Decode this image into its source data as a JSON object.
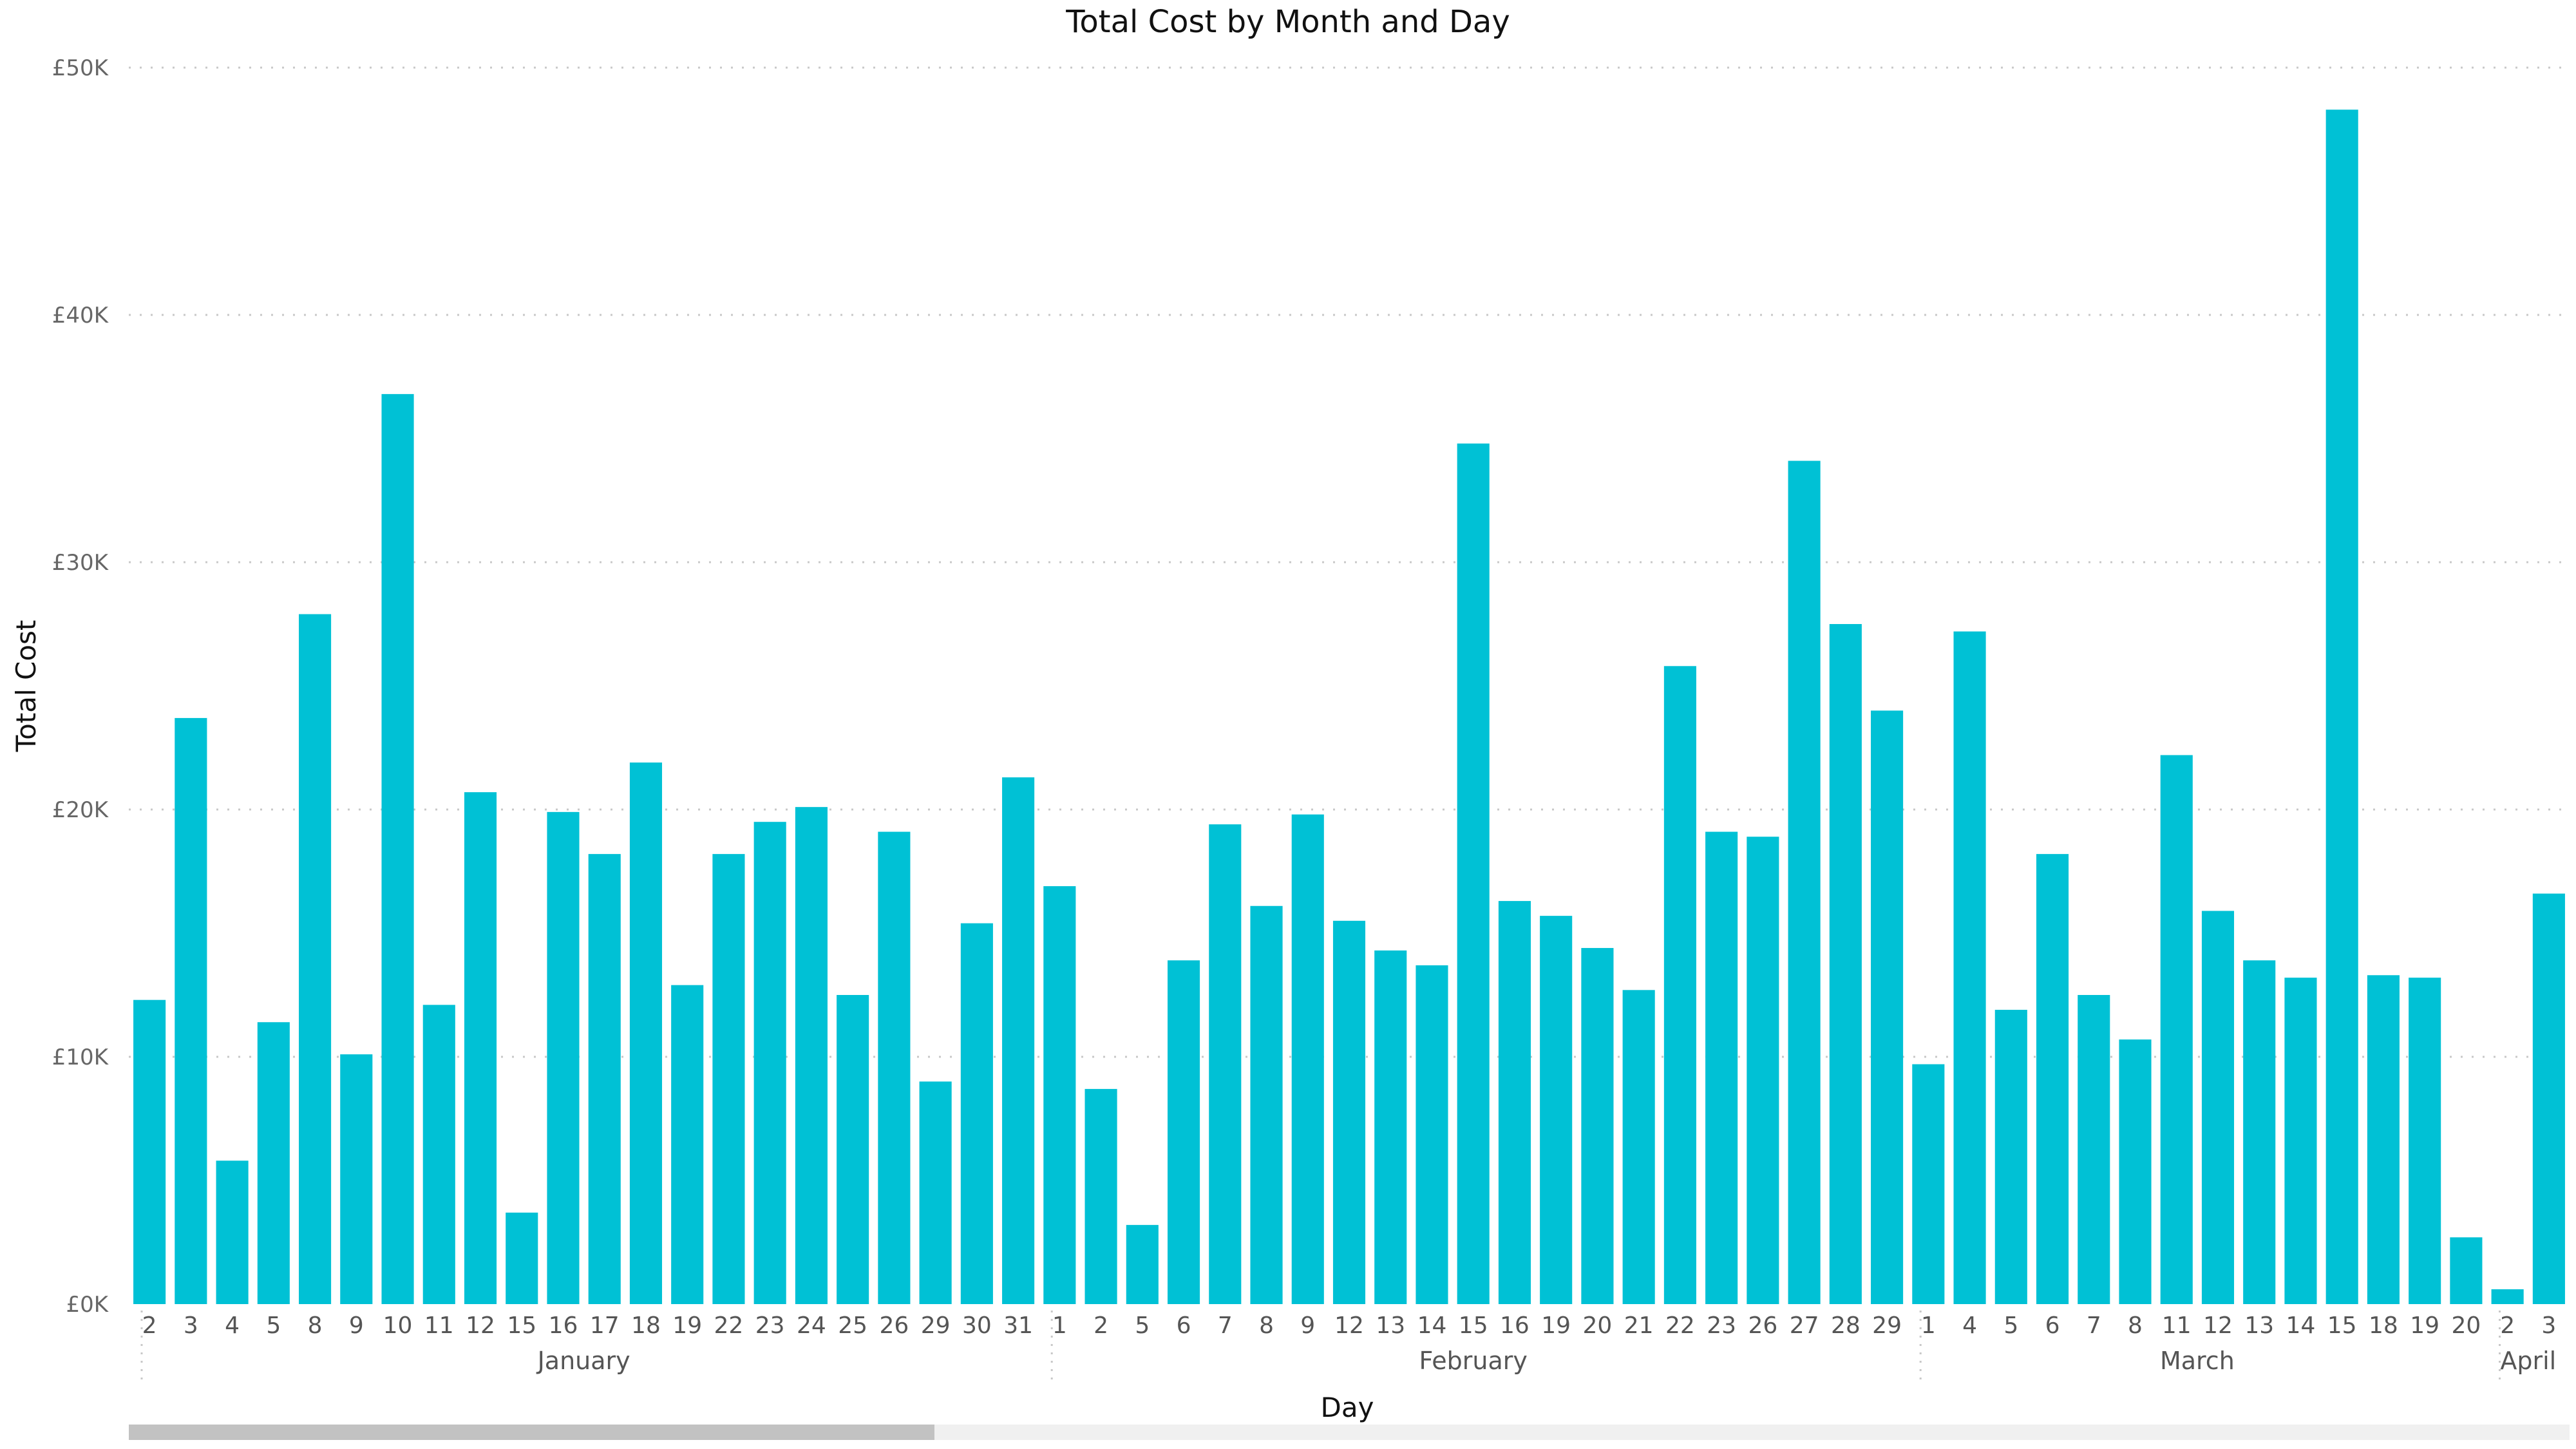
{
  "chart_data": {
    "type": "bar",
    "title": "Total Cost by Month and Day",
    "xlabel": "Day",
    "ylabel": "Total Cost",
    "ylim": [
      0,
      50000
    ],
    "yticks": [
      {
        "value": 0,
        "label": "£0K"
      },
      {
        "value": 10000,
        "label": "£10K"
      },
      {
        "value": 20000,
        "label": "£20K"
      },
      {
        "value": 30000,
        "label": "£30K"
      },
      {
        "value": 40000,
        "label": "£40K"
      },
      {
        "value": 50000,
        "label": "£50K"
      }
    ],
    "grid": true,
    "color": "#00C1D5",
    "months": [
      {
        "name": "January",
        "days": [
          "2",
          "3",
          "4",
          "5",
          "8",
          "9",
          "10",
          "11",
          "12",
          "15",
          "16",
          "17",
          "18",
          "19",
          "22",
          "23",
          "24",
          "25",
          "26",
          "29",
          "30",
          "31"
        ],
        "values": [
          12300,
          23700,
          5800,
          11400,
          27900,
          10100,
          36800,
          12100,
          20700,
          3700,
          19900,
          18200,
          21900,
          12900,
          18200,
          19500,
          20100,
          12500,
          19100,
          9000,
          15400,
          21300
        ]
      },
      {
        "name": "February",
        "days": [
          "1",
          "2",
          "5",
          "6",
          "7",
          "8",
          "9",
          "12",
          "13",
          "14",
          "15",
          "16",
          "19",
          "20",
          "21",
          "22",
          "23",
          "26",
          "27",
          "28",
          "29"
        ],
        "values": [
          16900,
          8700,
          3200,
          13900,
          19400,
          16100,
          19800,
          15500,
          14300,
          13700,
          34800,
          16300,
          15700,
          14400,
          12700,
          25800,
          19100,
          18900,
          34100,
          27500,
          24000
        ]
      },
      {
        "name": "March",
        "days": [
          "1",
          "4",
          "5",
          "6",
          "7",
          "8",
          "11",
          "12",
          "13",
          "14",
          "15",
          "18",
          "19",
          "20"
        ],
        "values": [
          9700,
          27200,
          11900,
          18200,
          12500,
          10700,
          22200,
          15900,
          13900,
          13200,
          48300,
          13300,
          13200,
          2700
        ]
      },
      {
        "name": "April",
        "days": [
          "2",
          "3"
        ],
        "values": [
          600,
          16600
        ]
      }
    ]
  },
  "scrollbar": {
    "thumb_fraction": 0.33
  }
}
